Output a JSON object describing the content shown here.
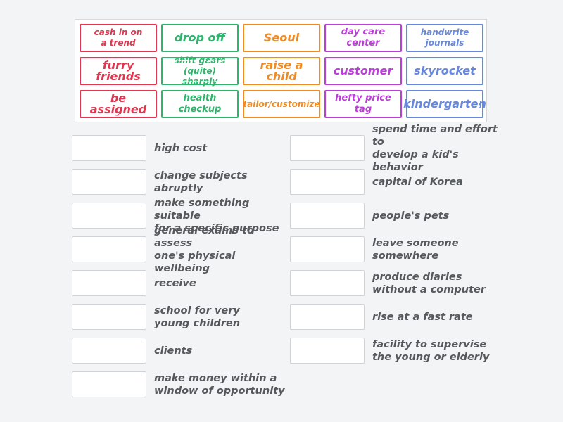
{
  "colors": {
    "red": "#e0364f",
    "green": "#2db56c",
    "orange": "#f08a22",
    "purple": "#b93fd6",
    "blue": "#6888dc",
    "clue_text": "#55585c"
  },
  "tiles": [
    {
      "text": "cash in on\na trend",
      "color": "red"
    },
    {
      "text": "drop off",
      "color": "green"
    },
    {
      "text": "Seoul",
      "color": "orange"
    },
    {
      "text": "day care center",
      "color": "purple"
    },
    {
      "text": "handwrite\njournals",
      "color": "blue"
    },
    {
      "text": "furry friends",
      "color": "red"
    },
    {
      "text": "shift gears\n(quite) sharply",
      "color": "green"
    },
    {
      "text": "raise a child",
      "color": "orange"
    },
    {
      "text": "customer",
      "color": "purple"
    },
    {
      "text": "skyrocket",
      "color": "blue"
    },
    {
      "text": "be assigned",
      "color": "red"
    },
    {
      "text": "health checkup",
      "color": "green"
    },
    {
      "text": "tailor/customize",
      "color": "orange"
    },
    {
      "text": "hefty price tag",
      "color": "purple"
    },
    {
      "text": "kindergarten",
      "color": "blue"
    }
  ],
  "clues_left": [
    "high cost",
    "change subjects\nabruptly",
    "make something suitable\nfor a specific purpose",
    "general exams to assess\none's physical wellbeing",
    "receive",
    "school for very\nyoung children",
    "clients",
    "make money within a\nwindow of opportunity"
  ],
  "clues_right": [
    "spend time and effort to\ndevelop a kid's behavior",
    "capital of Korea",
    "people's pets",
    "leave someone\nsomewhere",
    "produce diaries\nwithout a computer",
    "rise at a fast rate",
    "facility to supervise\nthe young or elderly"
  ]
}
